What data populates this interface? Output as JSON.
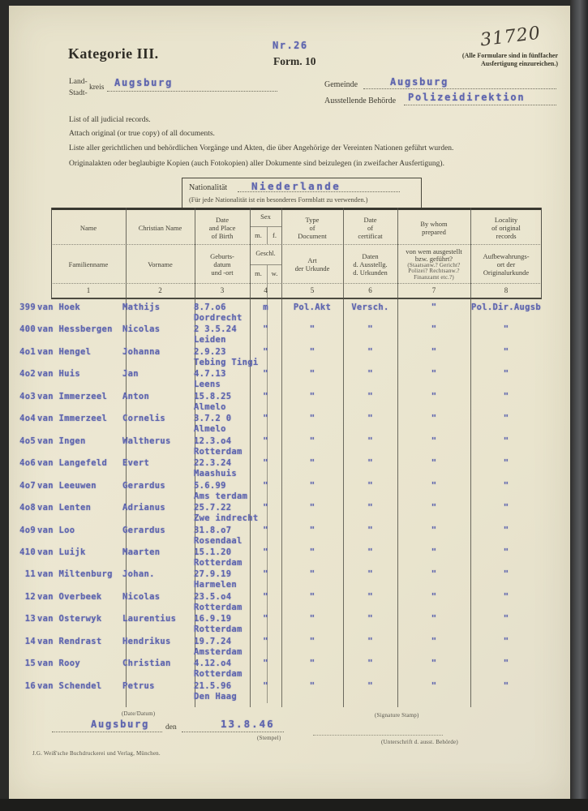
{
  "header": {
    "nr": "Nr.26",
    "handwritten_number": "31720",
    "category_title": "Kategorie III.",
    "form_label": "Form. 10",
    "copies_note": "(Alle Formulare sind in fünffacher\nAusfertigung einzureichen.)"
  },
  "fields": {
    "land_label": "Land-",
    "kreis_label": "kreis",
    "stadt_label": "Stadt-",
    "kreis_value": "Augsburg",
    "gemeinde_label": "Gemeinde",
    "gemeinde_value": "Augsburg",
    "behoerde_label": "Ausstellende Behörde",
    "behoerde_value": "Polizeidirektion"
  },
  "instructions": {
    "line1": "List of all judicial records.",
    "line2": "Attach original (or true copy) of all documents.",
    "line3": "Liste aller gerichtlichen und behördlichen Vorgänge und Akten, die über Angehörige der Vereinten Nationen geführt wurden.",
    "line4": "Originalakten oder beglaubigte Kopien (auch Fotokopien) aller Dokumente sind beizulegen (in zweifacher Ausfertigung)."
  },
  "nationality_box": {
    "label": "Nationalität",
    "value": "Niederlande",
    "note": "(Für jede Nationalität ist ein besonderes Formblatt zu verwenden.)"
  },
  "table": {
    "columns": [
      {
        "en": "Name",
        "de": "Familienname",
        "num": "1"
      },
      {
        "en": "Christian Name",
        "de": "Vorname",
        "num": "2"
      },
      {
        "en": "Date\nand Place\nof Birth",
        "de": "Geburts-\ndatum\nund -ort",
        "num": "3"
      },
      {
        "en": "Sex",
        "de": "Geschl.",
        "num": "4",
        "en_sub_left": "m.",
        "en_sub_right": "f.",
        "de_sub_left": "m.",
        "de_sub_right": "w."
      },
      {
        "en": "Type\nof\nDocument",
        "de": "Art\nder Urkunde",
        "num": "5"
      },
      {
        "en": "Date\nof\ncertificat",
        "de": "Daten\nd. Ausstellg.\nd. Urkunden",
        "num": "6"
      },
      {
        "en": "By whom\nprepared",
        "de": "von wem ausgestellt\nbzw. geführt?",
        "de_small": "(Staatsanw.? Gericht?\nPolizei? Rechtsanw.?\nFinanzamt etc.?)",
        "num": "7"
      },
      {
        "en": "Locality\nof original\nrecords",
        "de": "Aufbewahrungs-\nort der\nOriginalurkunde",
        "num": "8"
      }
    ],
    "rows": [
      {
        "num": "399",
        "name": "van Hoek",
        "christian": "Mathijs",
        "date": "8.7.o6",
        "place": "Dordrecht",
        "sex": "m",
        "doc": "Pol.Akt",
        "cert": "Versch.",
        "prep": "\"",
        "loc": "Pol.Dir.Augsb"
      },
      {
        "num": "400",
        "name": "van Hessbergen",
        "christian": "Nicolas",
        "date": "2 3.5.24",
        "place": "Leiden",
        "sex": "\"",
        "doc": "\"",
        "cert": "\"",
        "prep": "\"",
        "loc": "\""
      },
      {
        "num": "4o1",
        "name": "van Hengel",
        "christian": "Johanna",
        "date": "2.9.23",
        "place": "Tebing Tingi",
        "sex": "\"",
        "doc": "\"",
        "cert": "\"",
        "prep": "\"",
        "loc": "\""
      },
      {
        "num": "4o2",
        "name": "van Huis",
        "christian": "Jan",
        "date": "4.7.13",
        "place": "Leens",
        "sex": "\"",
        "doc": "\"",
        "cert": "\"",
        "prep": "\"",
        "loc": "\""
      },
      {
        "num": "4o3",
        "name": "van Immerzeel",
        "christian": "Anton",
        "date": "15.8.25",
        "place": "Almelo",
        "sex": "\"",
        "doc": "\"",
        "cert": "\"",
        "prep": "\"",
        "loc": "\""
      },
      {
        "num": "4o4",
        "name": "van Immerzeel",
        "christian": "Cornelis",
        "date": "3.7.2 0",
        "place": "Almelo",
        "sex": "\"",
        "doc": "\"",
        "cert": "\"",
        "prep": "\"",
        "loc": "\""
      },
      {
        "num": "4o5",
        "name": "van Ingen",
        "christian": "Waltherus",
        "date": "12.3.o4",
        "place": "Rotterdam",
        "sex": "\"",
        "doc": "\"",
        "cert": "\"",
        "prep": "\"",
        "loc": "\""
      },
      {
        "num": "4o6",
        "name": "van Langefeld",
        "christian": "Evert",
        "date": "22.3.24",
        "place": "Maashuis",
        "sex": "\"",
        "doc": "\"",
        "cert": "\"",
        "prep": "\"",
        "loc": "\""
      },
      {
        "num": "4o7",
        "name": "van Leeuwen",
        "christian": "Gerardus",
        "date": "5.6.99",
        "place": "Ams terdam",
        "sex": "\"",
        "doc": "\"",
        "cert": "\"",
        "prep": "\"",
        "loc": "\""
      },
      {
        "num": "4o8",
        "name": "van Lenten",
        "christian": "Adrianus",
        "date": "25.7.22",
        "place": "Zwe indrecht",
        "sex": "\"",
        "doc": "\"",
        "cert": "\"",
        "prep": "\"",
        "loc": "\""
      },
      {
        "num": "4o9",
        "name": "van Loo",
        "christian": "Gerardus",
        "date": "31.8.o7",
        "place": "Rosendaal",
        "sex": "\"",
        "doc": "\"",
        "cert": "\"",
        "prep": "\"",
        "loc": "\""
      },
      {
        "num": "410",
        "name": "van Luijk",
        "christian": "Maarten",
        "date": "15.1.20",
        "place": "Rotterdam",
        "sex": "\"",
        "doc": "\"",
        "cert": "\"",
        "prep": "\"",
        "loc": "\""
      },
      {
        "num": "11",
        "name": "van Miltenburg",
        "christian": "Johan.",
        "date": "27.9.19",
        "place": "Harmelen",
        "sex": "\"",
        "doc": "\"",
        "cert": "\"",
        "prep": "\"",
        "loc": "\""
      },
      {
        "num": "12",
        "name": "van Overbeek",
        "christian": "Nicolas",
        "date": "23.5.o4",
        "place": "Rotterdam",
        "sex": "\"",
        "doc": "\"",
        "cert": "\"",
        "prep": "\"",
        "loc": "\""
      },
      {
        "num": "13",
        "name": "van Osterwyk",
        "christian": "Laurentius",
        "date": "16.9.19",
        "place": "Rotterdam",
        "sex": "\"",
        "doc": "\"",
        "cert": "\"",
        "prep": "\"",
        "loc": "\""
      },
      {
        "num": "14",
        "name": "van Rendrast",
        "christian": "Hendrikus",
        "date": "19.7.24",
        "place": "Amsterdam",
        "sex": "\"",
        "doc": "\"",
        "cert": "\"",
        "prep": "\"",
        "loc": "\""
      },
      {
        "num": "15",
        "name": "van Rooy",
        "christian": "Christian",
        "date": "4.12.o4",
        "place": "Rotterdam",
        "sex": "\"",
        "doc": "\"",
        "cert": "\"",
        "prep": "\"",
        "loc": "\""
      },
      {
        "num": "16",
        "name": "van Schendel",
        "christian": "Petrus",
        "date": "21.5.96",
        "place": "Den Haag",
        "sex": "\"",
        "doc": "\"",
        "cert": "\"",
        "prep": "\"",
        "loc": "\""
      }
    ]
  },
  "footer": {
    "date_label": "(Date/Datum)",
    "place_value": "Augsburg",
    "den_label": "den",
    "date_value": "13.8.46",
    "stempel_label": "(Stempel)",
    "signature_stamp_label": "(Signature Stamp)",
    "unterschrift_label": "(Unterschrift d. ausst. Behörde)",
    "imprint": "J.G. Weiß'sche Buchdruckerei und Verlag, München."
  }
}
